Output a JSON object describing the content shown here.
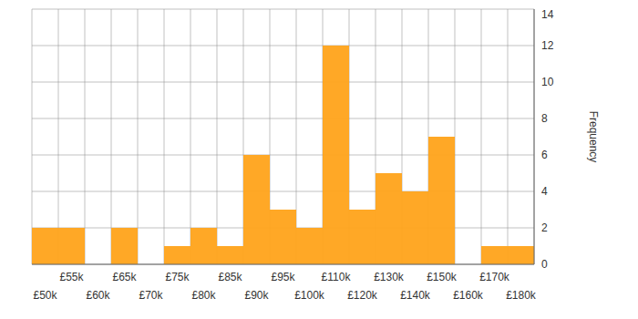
{
  "chart_data": {
    "type": "bar",
    "y_label": "Frequency",
    "categories": [
      "£50k",
      "£55k",
      "£60k",
      "£65k",
      "£70k",
      "£75k",
      "£80k",
      "£85k",
      "£90k",
      "£95k",
      "£100k",
      "£110k",
      "£120k",
      "£130k",
      "£140k",
      "£150k",
      "£160k",
      "£170k",
      "£180k"
    ],
    "values": [
      2,
      2,
      0,
      2,
      0,
      1,
      2,
      1,
      6,
      3,
      2,
      12,
      3,
      5,
      4,
      7,
      0,
      1,
      1
    ],
    "color": "#ffa31a",
    "ylim": [
      0,
      14
    ],
    "yticks": [
      0,
      2,
      4,
      6,
      8,
      10,
      12,
      14
    ],
    "grid": true
  }
}
